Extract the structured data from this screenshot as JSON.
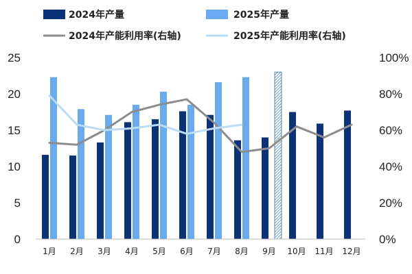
{
  "chart_data": {
    "type": "bar",
    "categories": [
      "1月",
      "2月",
      "3月",
      "4月",
      "5月",
      "6月",
      "7月",
      "8月",
      "9月",
      "10月",
      "11月",
      "12月"
    ],
    "series": [
      {
        "name": "2024年产量",
        "type": "bar",
        "axis": "left",
        "color": "#0b3279",
        "values": [
          11.6,
          11.5,
          13.3,
          16.1,
          16.5,
          17.6,
          17.1,
          13.6,
          14.0,
          17.5,
          15.9,
          17.7
        ]
      },
      {
        "name": "2025年产量",
        "type": "bar",
        "axis": "left",
        "color": "#6aaaf0",
        "values": [
          22.3,
          17.9,
          17.1,
          18.5,
          20.3,
          18.5,
          21.6,
          22.3,
          null,
          null,
          null,
          null
        ]
      },
      {
        "name": "2024年产能利用率(右轴)",
        "type": "line",
        "axis": "right",
        "color": "#8c8c8c",
        "unit": "%",
        "values": [
          53,
          52,
          60,
          70,
          74,
          77,
          64,
          48,
          50,
          62,
          56,
          63
        ]
      },
      {
        "name": "2025年产能利用率(右轴)",
        "type": "line",
        "axis": "right",
        "color": "#bcdcf6",
        "unit": "%",
        "values": [
          79,
          63,
          60,
          61,
          63,
          58,
          61,
          63,
          null,
          null,
          null,
          null
        ]
      }
    ],
    "hatched_marker": {
      "after_category": "9月",
      "color": "#4d86a8",
      "value": 23
    },
    "y_left": {
      "min": 0,
      "max": 25,
      "ticks": [
        0,
        5,
        10,
        15,
        20,
        25
      ],
      "tick_labels": [
        "0",
        "5",
        "10",
        "15",
        "20",
        "25"
      ]
    },
    "y_right": {
      "min": 0,
      "max": 100,
      "ticks": [
        0,
        20,
        40,
        60,
        80,
        100
      ],
      "tick_labels": [
        "0%",
        "20%",
        "40%",
        "60%",
        "80%",
        "100%"
      ]
    },
    "grid": false,
    "legend_position": "top"
  }
}
